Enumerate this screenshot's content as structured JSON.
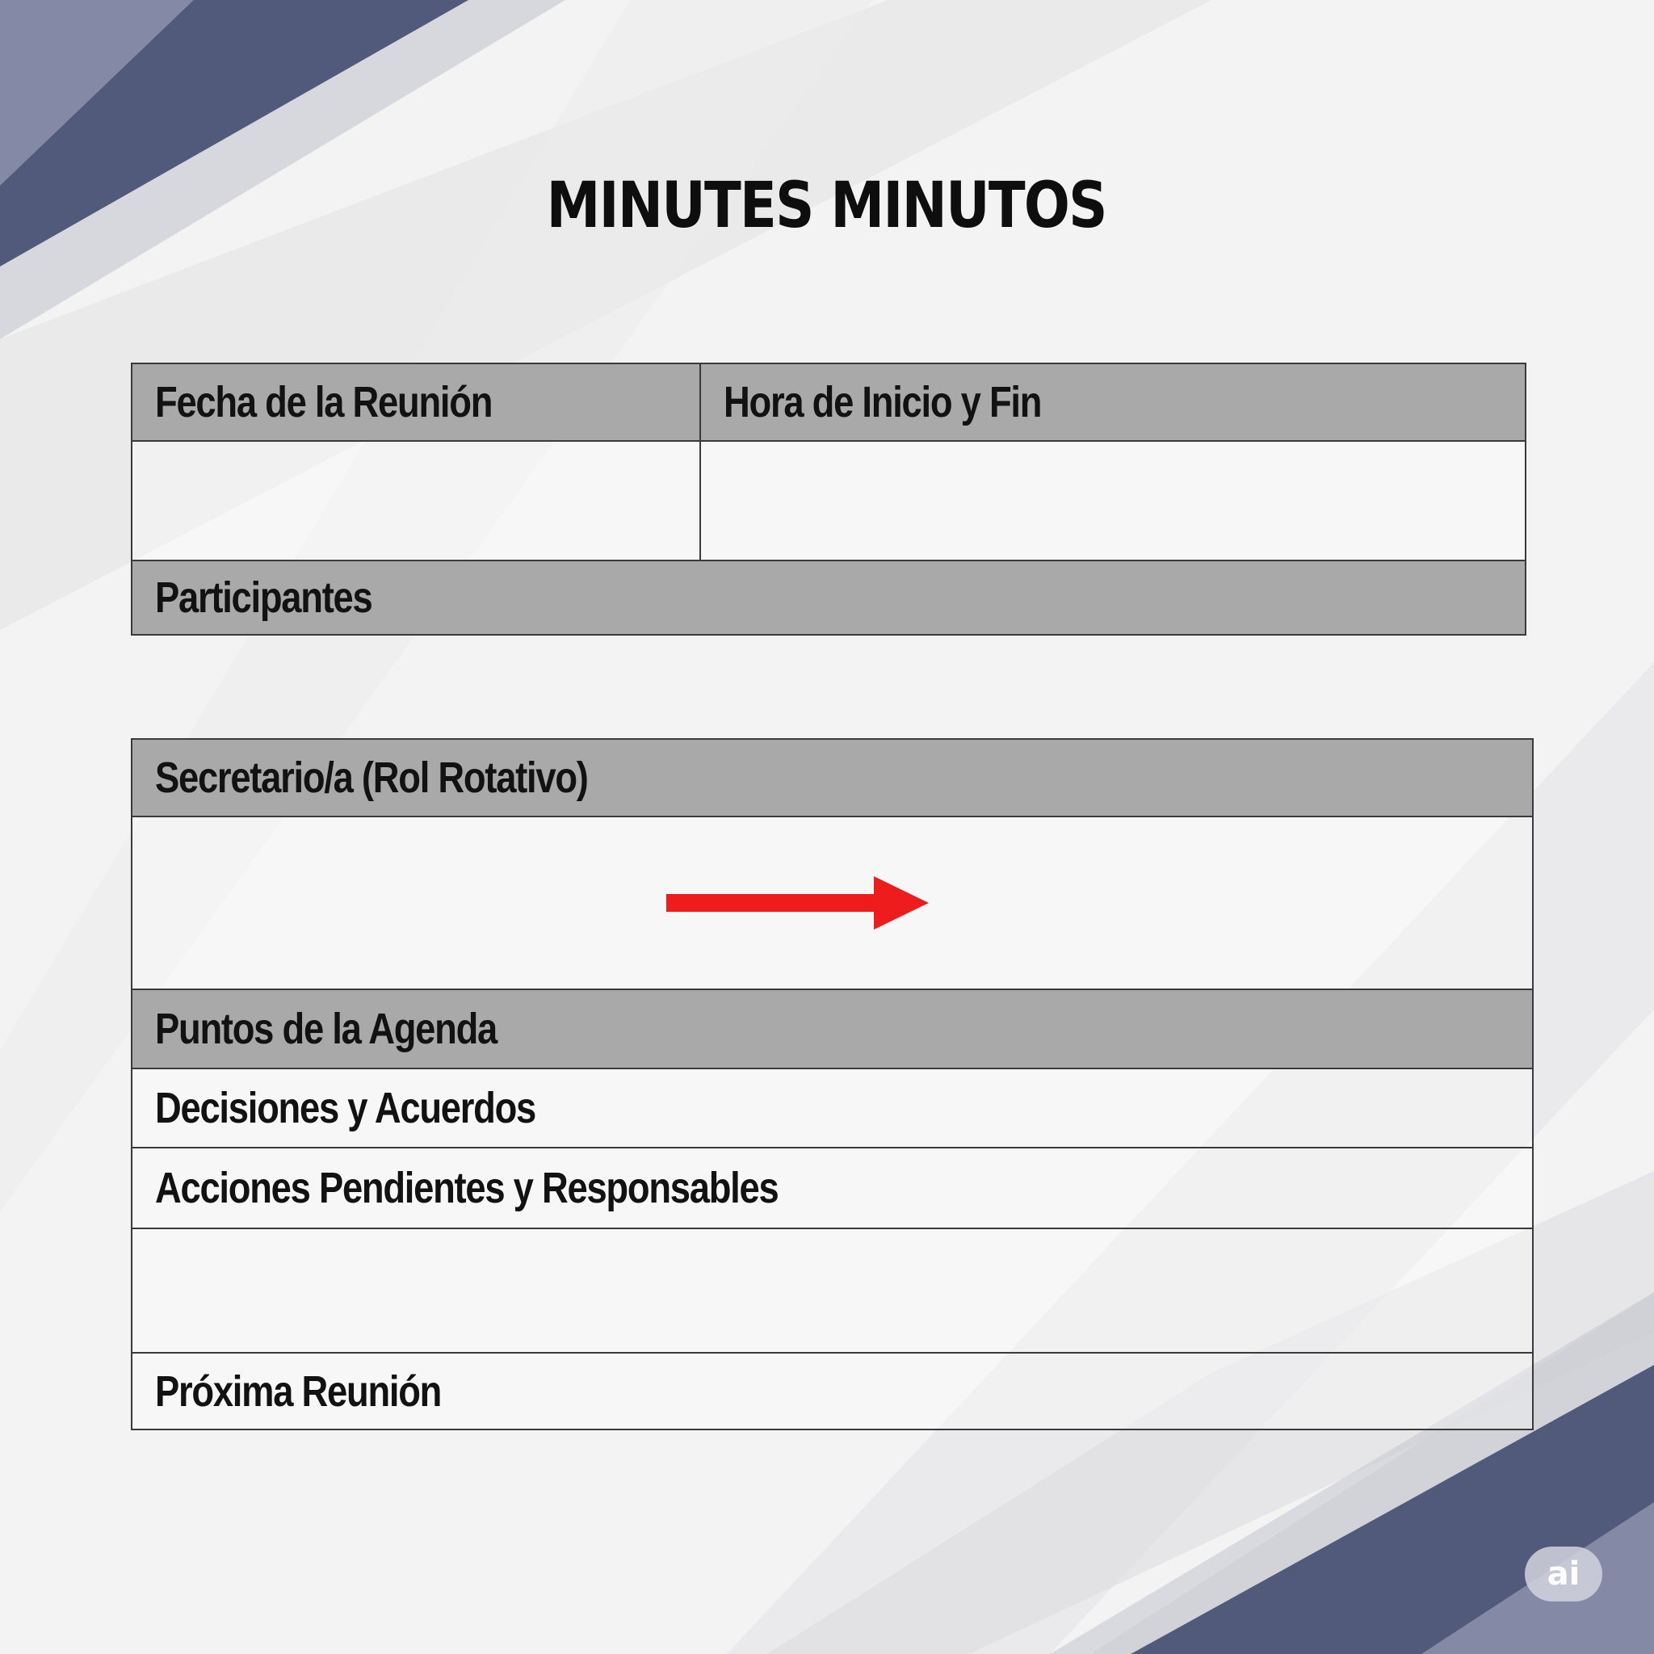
{
  "title": "MINUTES MINUTOS",
  "colors": {
    "accent_dark": "#525a7c",
    "accent_light": "#8489a6",
    "header_fill": "#a9a9a9",
    "arrow": "#ee1c1c",
    "border": "#3a3a3a"
  },
  "table1": {
    "header_left": "Fecha de la Reunión",
    "header_right": "Hora de Inicio y Fin",
    "date_value": "",
    "time_value": "",
    "participants_label": "Participantes"
  },
  "table2": {
    "secretary_label": "Secretario/a (Rol Rotativo)",
    "secretary_value": "",
    "agenda_label": "Puntos de la Agenda",
    "decisions_label": "Decisiones y Acuerdos",
    "actions_label": "Acciones Pendientes y Responsables",
    "actions_value": "",
    "next_meeting_label": "Próxima Reunión"
  },
  "annotation": {
    "icon": "arrow-right-icon",
    "color": "#ee1c1c"
  },
  "badge": {
    "text": "ai"
  }
}
